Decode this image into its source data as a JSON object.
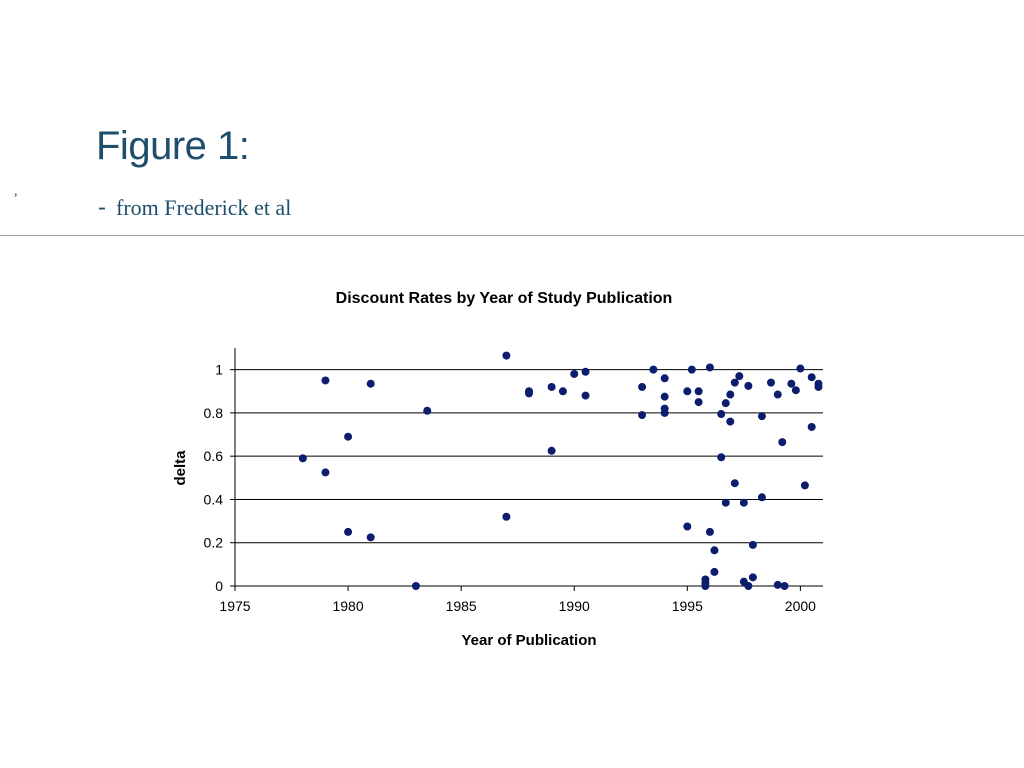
{
  "slide": {
    "title": "Figure 1:",
    "subtitle_dash": "-",
    "subtitle": "from Frederick et al",
    "stray_mark": ","
  },
  "colors": {
    "title": "#1d4e6b",
    "points": "#0d1d6e",
    "grid": "#000000"
  },
  "chart_data": {
    "type": "scatter",
    "title": "Discount Rates by Year of Study Publication",
    "xlabel": "Year of Publication",
    "ylabel": "delta",
    "xlim": [
      1975,
      2001
    ],
    "ylim": [
      0,
      1.1
    ],
    "xticks": [
      1975,
      1980,
      1985,
      1990,
      1995,
      2000
    ],
    "yticks": [
      0,
      0.2,
      0.4,
      0.6,
      0.8,
      1
    ],
    "ytick_labels": [
      "0",
      "0.2",
      "0.4",
      "0.6",
      "0.8",
      "1"
    ],
    "grid": "horizontal",
    "legend": "none",
    "series": [
      {
        "points": [
          [
            1978,
            0.59
          ],
          [
            1979,
            0.95
          ],
          [
            1979,
            0.525
          ],
          [
            1980,
            0.69
          ],
          [
            1980,
            0.25
          ],
          [
            1981,
            0.935
          ],
          [
            1981,
            0.225
          ],
          [
            1983,
            0.0
          ],
          [
            1983.5,
            0.81
          ],
          [
            1987,
            1.065
          ],
          [
            1987,
            0.32
          ],
          [
            1988,
            0.9
          ],
          [
            1988,
            0.89
          ],
          [
            1989,
            0.92
          ],
          [
            1989,
            0.625
          ],
          [
            1989.5,
            0.9
          ],
          [
            1990,
            0.98
          ],
          [
            1990.5,
            0.99
          ],
          [
            1990.5,
            0.88
          ],
          [
            1993,
            0.92
          ],
          [
            1993,
            0.79
          ],
          [
            1993.5,
            1.0
          ],
          [
            1994,
            0.96
          ],
          [
            1994,
            0.875
          ],
          [
            1994,
            0.82
          ],
          [
            1994,
            0.8
          ],
          [
            1995,
            0.9
          ],
          [
            1995,
            0.275
          ],
          [
            1995.2,
            1.0
          ],
          [
            1995.5,
            0.9
          ],
          [
            1995.5,
            0.85
          ],
          [
            1995.8,
            0.03
          ],
          [
            1995.8,
            0.015
          ],
          [
            1995.8,
            0.0
          ],
          [
            1996,
            1.01
          ],
          [
            1996,
            0.25
          ],
          [
            1996.2,
            0.165
          ],
          [
            1996.2,
            0.065
          ],
          [
            1996.5,
            0.795
          ],
          [
            1996.5,
            0.595
          ],
          [
            1996.7,
            0.845
          ],
          [
            1996.7,
            0.385
          ],
          [
            1996.9,
            0.885
          ],
          [
            1996.9,
            0.76
          ],
          [
            1997.1,
            0.94
          ],
          [
            1997.1,
            0.475
          ],
          [
            1997.3,
            0.97
          ],
          [
            1997.5,
            0.385
          ],
          [
            1997.5,
            0.02
          ],
          [
            1997.7,
            0.925
          ],
          [
            1997.7,
            0.0
          ],
          [
            1997.9,
            0.19
          ],
          [
            1997.9,
            0.04
          ],
          [
            1998.3,
            0.785
          ],
          [
            1998.3,
            0.41
          ],
          [
            1998.7,
            0.94
          ],
          [
            1999,
            0.885
          ],
          [
            1999,
            0.005
          ],
          [
            1999.2,
            0.665
          ],
          [
            1999.3,
            0.0
          ],
          [
            1999.6,
            0.935
          ],
          [
            1999.8,
            0.905
          ],
          [
            2000,
            1.005
          ],
          [
            2000.2,
            0.465
          ],
          [
            2000.5,
            0.965
          ],
          [
            2000.5,
            0.735
          ],
          [
            2000.8,
            0.935
          ],
          [
            2000.8,
            0.92
          ]
        ]
      }
    ]
  }
}
